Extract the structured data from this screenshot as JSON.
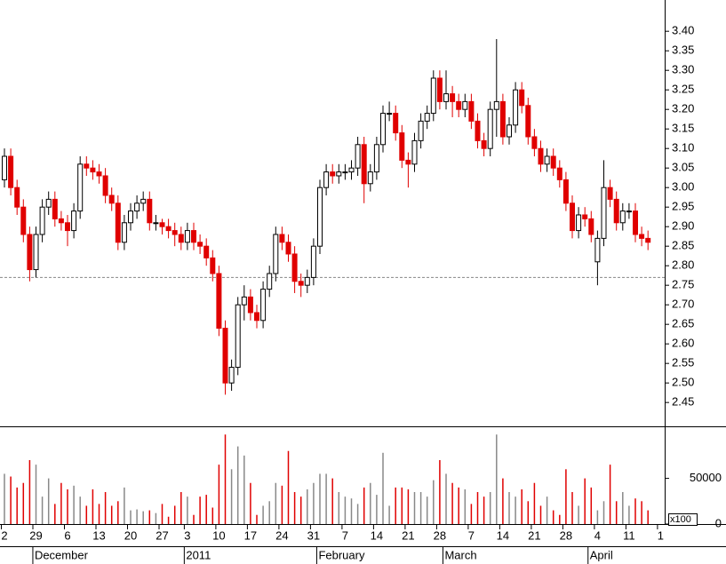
{
  "chart_data": {
    "type": "candlestick",
    "categories": [
      "2",
      null,
      null,
      null,
      null,
      "29",
      null,
      null,
      null,
      null,
      "6",
      null,
      null,
      null,
      null,
      "13",
      null,
      null,
      null,
      null,
      "20",
      null,
      null,
      null,
      null,
      "27",
      null,
      null,
      null,
      "3",
      null,
      null,
      null,
      null,
      "10",
      null,
      null,
      null,
      null,
      "17",
      null,
      null,
      null,
      null,
      "24",
      null,
      null,
      null,
      null,
      "31",
      null,
      null,
      null,
      null,
      "7",
      null,
      null,
      null,
      null,
      "14",
      null,
      null,
      null,
      null,
      "21",
      null,
      null,
      null,
      null,
      "28",
      null,
      null,
      null,
      null,
      "7",
      null,
      null,
      null,
      null,
      "14",
      null,
      null,
      null,
      null,
      "21",
      null,
      null,
      null,
      null,
      "28",
      null,
      null,
      null,
      null,
      "4",
      null,
      null,
      null,
      null,
      "11",
      null,
      null,
      null,
      null,
      "1"
    ],
    "month_ticks": [
      {
        "value": 5,
        "label": "December"
      },
      {
        "value": 29,
        "label": "2011"
      },
      {
        "value": 50,
        "label": "February"
      },
      {
        "value": 70,
        "label": "March"
      },
      {
        "value": 93,
        "label": "April"
      }
    ],
    "open": [
      3.02,
      3.08,
      3.0,
      2.95,
      2.88,
      2.79,
      2.88,
      2.95,
      2.97,
      2.92,
      2.91,
      2.89,
      2.94,
      3.06,
      3.05,
      3.04,
      3.03,
      2.98,
      2.96,
      2.86,
      2.91,
      2.94,
      2.96,
      2.97,
      2.91,
      2.91,
      2.9,
      2.89,
      2.88,
      2.86,
      2.89,
      2.86,
      2.85,
      2.82,
      2.78,
      2.64,
      2.5,
      2.54,
      2.7,
      2.72,
      2.68,
      2.66,
      2.74,
      2.78,
      2.88,
      2.86,
      2.83,
      2.76,
      2.75,
      2.77,
      2.85,
      3.0,
      3.04,
      3.03,
      3.04,
      3.04,
      3.05,
      3.11,
      3.01,
      3.04,
      3.11,
      3.19,
      3.19,
      3.14,
      3.07,
      3.06,
      3.12,
      3.17,
      3.19,
      3.28,
      3.22,
      3.24,
      3.22,
      3.2,
      3.22,
      3.17,
      3.12,
      3.1,
      3.2,
      3.22,
      3.13,
      3.16,
      3.25,
      3.21,
      3.13,
      3.1,
      3.06,
      3.08,
      3.05,
      3.02,
      2.96,
      2.89,
      2.93,
      2.92,
      2.81,
      2.87,
      3.0,
      2.97,
      2.91,
      2.94,
      2.94,
      2.88,
      2.87,
      null,
      null
    ],
    "high": [
      3.1,
      3.1,
      3.02,
      2.97,
      2.9,
      2.9,
      2.97,
      2.99,
      2.99,
      2.94,
      2.93,
      2.96,
      3.08,
      3.08,
      3.07,
      3.06,
      3.05,
      3.0,
      2.98,
      2.93,
      2.96,
      2.98,
      2.99,
      2.99,
      2.93,
      2.92,
      2.92,
      2.91,
      2.9,
      2.91,
      2.91,
      2.88,
      2.87,
      2.84,
      2.8,
      2.66,
      2.56,
      2.72,
      2.75,
      2.74,
      2.7,
      2.76,
      2.8,
      2.9,
      2.9,
      2.88,
      2.85,
      2.78,
      2.79,
      2.87,
      3.02,
      3.06,
      3.06,
      3.06,
      3.06,
      3.07,
      3.13,
      3.13,
      3.06,
      3.13,
      3.21,
      3.22,
      3.21,
      3.16,
      3.09,
      3.14,
      3.19,
      3.21,
      3.3,
      3.3,
      3.3,
      3.26,
      3.24,
      3.24,
      3.24,
      3.19,
      3.14,
      3.22,
      3.38,
      3.24,
      3.18,
      3.27,
      3.27,
      3.23,
      3.15,
      3.12,
      3.1,
      3.1,
      3.07,
      3.04,
      2.98,
      2.95,
      2.95,
      2.94,
      2.89,
      3.07,
      3.02,
      2.99,
      2.96,
      2.96,
      2.96,
      2.9,
      2.89,
      null,
      null
    ],
    "low": [
      3.0,
      2.98,
      2.93,
      2.86,
      2.76,
      2.77,
      2.86,
      2.93,
      2.9,
      2.89,
      2.85,
      2.87,
      2.92,
      3.03,
      3.02,
      3.01,
      2.96,
      2.94,
      2.84,
      2.84,
      2.89,
      2.92,
      2.94,
      2.89,
      2.89,
      2.88,
      2.87,
      2.85,
      2.84,
      2.84,
      2.84,
      2.83,
      2.8,
      2.76,
      2.62,
      2.47,
      2.48,
      2.52,
      2.66,
      2.66,
      2.64,
      2.64,
      2.72,
      2.76,
      2.84,
      2.81,
      2.73,
      2.72,
      2.73,
      2.75,
      2.83,
      2.98,
      3.01,
      3.01,
      3.02,
      3.02,
      3.03,
      2.96,
      2.99,
      3.02,
      3.09,
      3.17,
      3.12,
      3.05,
      3.0,
      3.04,
      3.1,
      3.15,
      3.17,
      3.2,
      3.2,
      3.18,
      3.18,
      3.18,
      3.15,
      3.1,
      3.08,
      3.08,
      3.13,
      3.11,
      3.11,
      3.14,
      3.19,
      3.11,
      3.08,
      3.04,
      3.04,
      3.03,
      3.0,
      2.94,
      2.87,
      2.87,
      2.9,
      2.86,
      2.75,
      2.85,
      2.95,
      2.89,
      2.89,
      2.92,
      2.86,
      2.85,
      2.84,
      null,
      null
    ],
    "close": [
      3.08,
      3.0,
      2.95,
      2.88,
      2.79,
      2.88,
      2.95,
      2.97,
      2.92,
      2.91,
      2.89,
      2.94,
      3.06,
      3.05,
      3.04,
      3.03,
      2.98,
      2.96,
      2.86,
      2.91,
      2.94,
      2.96,
      2.97,
      2.91,
      2.91,
      2.9,
      2.89,
      2.88,
      2.86,
      2.89,
      2.86,
      2.85,
      2.82,
      2.78,
      2.64,
      2.5,
      2.54,
      2.7,
      2.72,
      2.68,
      2.66,
      2.74,
      2.78,
      2.88,
      2.86,
      2.83,
      2.76,
      2.75,
      2.77,
      2.85,
      3.0,
      3.04,
      3.03,
      3.04,
      3.04,
      3.05,
      3.11,
      3.01,
      3.04,
      3.11,
      3.19,
      3.19,
      3.14,
      3.07,
      3.06,
      3.12,
      3.17,
      3.19,
      3.28,
      3.22,
      3.24,
      3.22,
      3.2,
      3.22,
      3.17,
      3.12,
      3.1,
      3.2,
      3.22,
      3.13,
      3.16,
      3.25,
      3.21,
      3.13,
      3.1,
      3.06,
      3.08,
      3.05,
      3.02,
      2.96,
      2.89,
      2.93,
      2.92,
      2.88,
      2.87,
      3.0,
      2.97,
      2.91,
      2.94,
      2.94,
      2.88,
      2.87,
      2.86,
      null,
      null
    ],
    "volume": [
      55000,
      52000,
      40000,
      45000,
      70000,
      65000,
      30000,
      50000,
      22000,
      45000,
      38000,
      42000,
      30000,
      20000,
      38000,
      22000,
      35000,
      20000,
      25000,
      40000,
      15000,
      16000,
      14000,
      15000,
      12000,
      22000,
      8000,
      20000,
      35000,
      30000,
      10000,
      30000,
      32000,
      18000,
      65000,
      98000,
      60000,
      85000,
      75000,
      45000,
      10000,
      20000,
      25000,
      45000,
      42000,
      80000,
      35000,
      30000,
      38000,
      45000,
      55000,
      55000,
      50000,
      35000,
      30000,
      28000,
      22000,
      40000,
      45000,
      32000,
      78000,
      20000,
      40000,
      40000,
      38000,
      35000,
      35000,
      30000,
      48000,
      70000,
      55000,
      45000,
      40000,
      38000,
      22000,
      35000,
      30000,
      35000,
      98000,
      50000,
      35000,
      30000,
      38000,
      25000,
      45000,
      20000,
      30000,
      15000,
      10000,
      60000,
      35000,
      20000,
      50000,
      40000,
      15000,
      25000,
      65000,
      25000,
      35000,
      20000,
      28000,
      25000,
      15000,
      null,
      null
    ],
    "up_color": "#ffffff",
    "down_color": "#e00000",
    "volume_up_color": "#888888",
    "volume_down_color": "#e00000",
    "ylim": [
      2.389,
      3.48
    ],
    "yticks": [
      2.45,
      {
        "value": 2.5,
        "label": "2.50"
      },
      2.55,
      {
        "value": 2.6,
        "label": "2.60"
      },
      2.65,
      {
        "value": 2.7,
        "label": "2.70"
      },
      2.75,
      {
        "value": 2.8,
        "label": "2.80"
      },
      2.85,
      {
        "value": 2.9,
        "label": "2.90"
      },
      2.95,
      {
        "value": 3.0,
        "label": "3.00"
      },
      3.05,
      {
        "value": 3.1,
        "label": "3.10"
      },
      3.15,
      {
        "value": 3.2,
        "label": "3.20"
      },
      3.25,
      {
        "value": 3.3,
        "label": "3.30"
      },
      3.35,
      {
        "value": 3.4,
        "label": "3.40"
      }
    ],
    "reference_line": 2.77,
    "volume_ylim": [
      0,
      106000
    ],
    "volume_yticks": [
      0,
      50000
    ],
    "volume_unit_label": "x100"
  }
}
